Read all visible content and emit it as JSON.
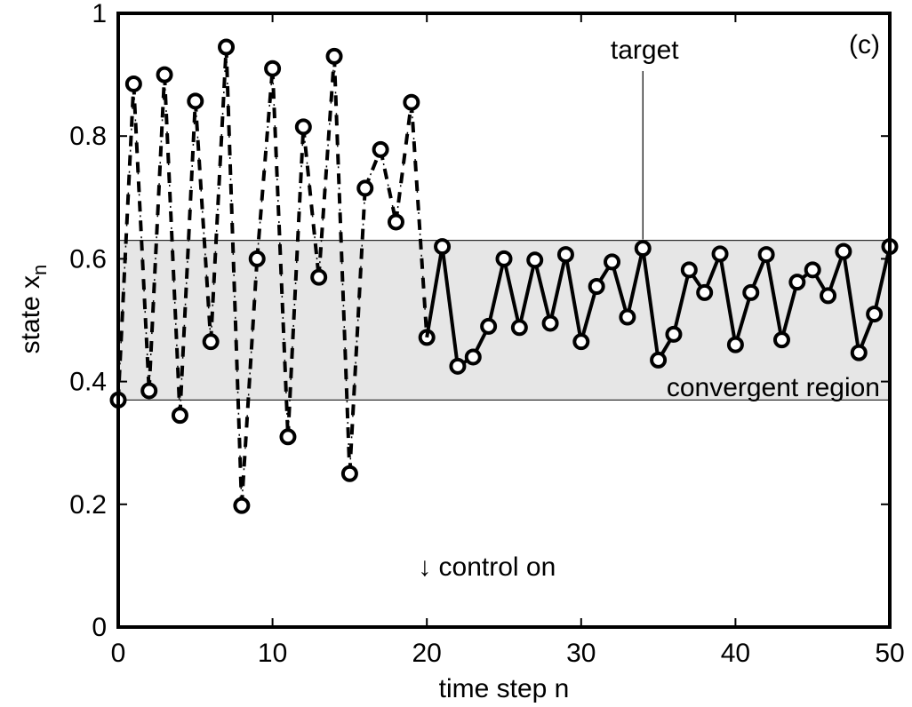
{
  "chart_data": {
    "type": "line",
    "panel_label": "(c)",
    "xlabel": "time step n",
    "ylabel": "state x",
    "ylabel_subscript": "n",
    "xlim": [
      0,
      50
    ],
    "ylim": [
      0,
      1
    ],
    "xticks": [
      0,
      10,
      20,
      30,
      40,
      50
    ],
    "xtick_labels": [
      "0",
      "10",
      "20",
      "30",
      "40",
      "50"
    ],
    "yticks": [
      0,
      0.2,
      0.4,
      0.6,
      0.8,
      1
    ],
    "ytick_labels": [
      "0",
      "0.2",
      "0.4",
      "0.6",
      "0.8",
      "1"
    ],
    "grid": false,
    "colors": {
      "band": "#e6e6e6",
      "ink": "#000000"
    },
    "convergent_region": {
      "label": "convergent region",
      "y_range": [
        0.37,
        0.63
      ]
    },
    "annotations": {
      "target_label": "target",
      "target_x": 34,
      "control_on_label": "↓ control on",
      "control_on_x": 20
    },
    "series": [
      {
        "style": "dash-dot",
        "x": [
          0,
          1,
          2,
          3,
          4,
          5,
          6,
          7,
          8,
          9,
          10,
          11,
          12,
          13,
          14,
          15,
          16,
          17,
          18,
          19,
          20
        ],
        "values": [
          0.37,
          0.885,
          0.385,
          0.9,
          0.345,
          0.857,
          0.465,
          0.945,
          0.198,
          0.6,
          0.91,
          0.31,
          0.815,
          0.57,
          0.93,
          0.25,
          0.715,
          0.778,
          0.66,
          0.855,
          0.472
        ]
      },
      {
        "style": "solid",
        "x": [
          20,
          21,
          22,
          23,
          24,
          25,
          26,
          27,
          28,
          29,
          30,
          31,
          32,
          33,
          34,
          35,
          36,
          37,
          38,
          39,
          40,
          41,
          42,
          43,
          44,
          45,
          46,
          47,
          48,
          49,
          50
        ],
        "values": [
          0.472,
          0.62,
          0.425,
          0.44,
          0.49,
          0.6,
          0.488,
          0.598,
          0.495,
          0.607,
          0.465,
          0.555,
          0.595,
          0.505,
          0.617,
          0.435,
          0.477,
          0.582,
          0.545,
          0.608,
          0.46,
          0.545,
          0.607,
          0.468,
          0.562,
          0.582,
          0.54,
          0.612,
          0.447,
          0.51,
          0.62
        ]
      }
    ]
  }
}
